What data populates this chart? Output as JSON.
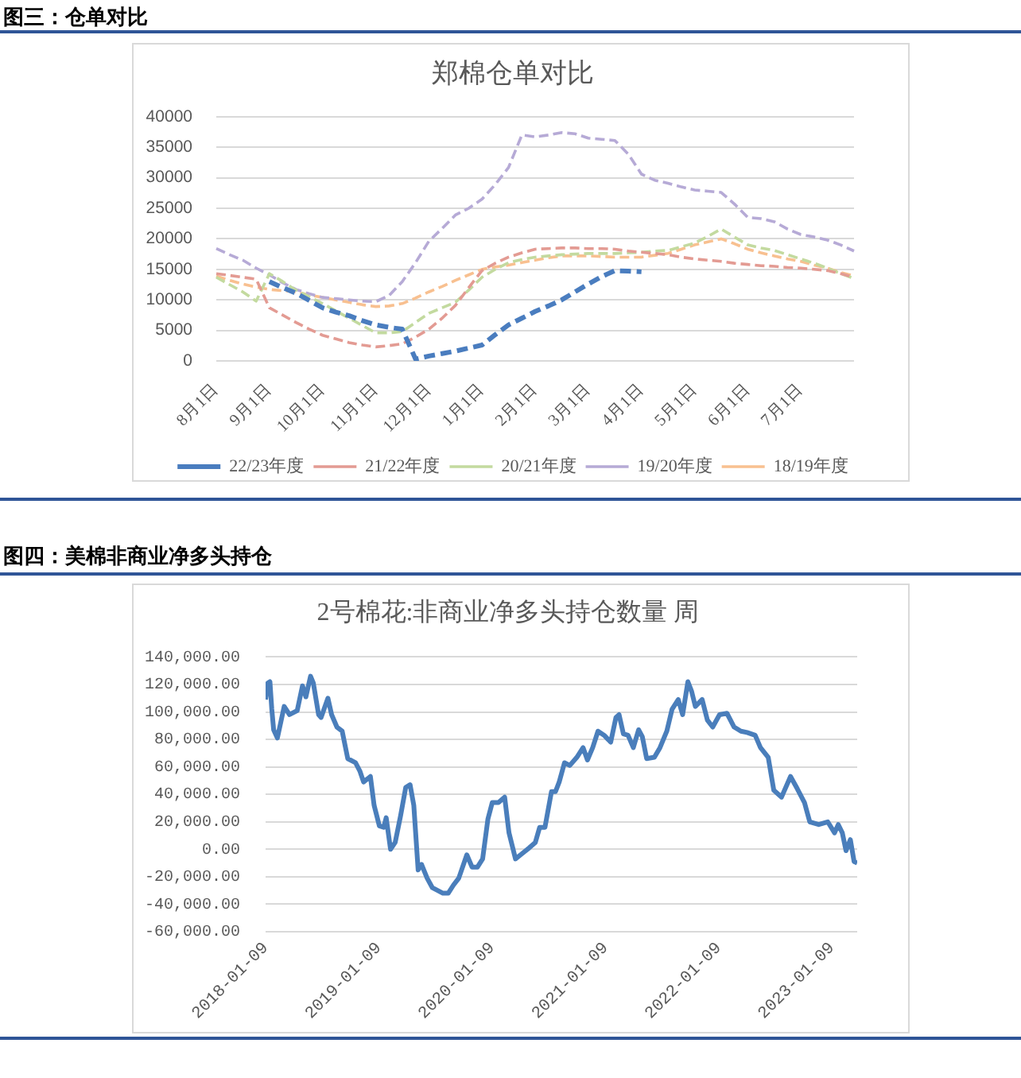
{
  "chart_data": [
    {
      "type": "line",
      "title": "图三：仓单对比",
      "subtitle": "郑棉仓单对比",
      "categories": [
        "8月1日",
        null,
        null,
        null,
        "9月1日",
        null,
        null,
        null,
        "10月1日",
        null,
        null,
        null,
        "11月1日",
        null,
        null,
        null,
        "12月1日",
        null,
        null,
        null,
        "1月1日",
        null,
        null,
        null,
        "2月1日",
        null,
        null,
        null,
        "3月1日",
        null,
        null,
        null,
        "4月1日",
        null,
        null,
        null,
        "5月1日",
        null,
        null,
        null,
        "6月1日",
        null,
        null,
        null,
        "7月1日",
        null,
        null,
        null,
        null
      ],
      "ylim": [
        0,
        40000
      ],
      "yticks": [
        0,
        5000,
        10000,
        15000,
        20000,
        25000,
        30000,
        35000,
        40000
      ],
      "grid": "y",
      "legend": "bottom",
      "line_style": "dashed",
      "marker": "none",
      "series": [
        {
          "name": "22/23年度",
          "color": "#4a7dbf",
          "values": [
            null,
            null,
            null,
            null,
            13000,
            12000,
            11100,
            9900,
            8700,
            8000,
            7400,
            6600,
            5900,
            5500,
            5200,
            300,
            800,
            1200,
            1600,
            2100,
            2600,
            4300,
            5900,
            7000,
            8100,
            9000,
            10000,
            11300,
            12600,
            13800,
            14800,
            14700,
            14600,
            null,
            null,
            null,
            null,
            null,
            null,
            null,
            null,
            null,
            null,
            null,
            null,
            null,
            null,
            null,
            null
          ]
        },
        {
          "name": "21/22年度",
          "color": "#e39b93",
          "values": [
            14300,
            14000,
            13700,
            13400,
            8700,
            7500,
            6300,
            5200,
            4200,
            3600,
            3000,
            2600,
            2300,
            2500,
            2800,
            3900,
            5200,
            7000,
            9100,
            12000,
            14800,
            16000,
            17000,
            17700,
            18300,
            18400,
            18500,
            18500,
            18400,
            18400,
            18300,
            18000,
            17800,
            17600,
            17400,
            17000,
            16700,
            16500,
            16300,
            16000,
            15800,
            15600,
            15500,
            15300,
            15200,
            15000,
            14800,
            14300,
            13700
          ]
        },
        {
          "name": "20/21年度",
          "color": "#c3da9f",
          "values": [
            13700,
            12500,
            11300,
            9800,
            14300,
            13000,
            11600,
            10500,
            9400,
            8200,
            7000,
            5800,
            4600,
            4600,
            4800,
            6300,
            7800,
            8700,
            9600,
            11600,
            13700,
            15000,
            16100,
            16600,
            17000,
            17200,
            17400,
            17500,
            17600,
            17600,
            17600,
            17700,
            17800,
            18000,
            18100,
            18700,
            19300,
            20400,
            21600,
            20300,
            19000,
            18500,
            18100,
            17400,
            16700,
            16000,
            15200,
            14300,
            13500
          ]
        },
        {
          "name": "19/20年度",
          "color": "#b6aad6",
          "values": [
            18400,
            17400,
            16500,
            15200,
            14100,
            12800,
            11700,
            11000,
            10400,
            10200,
            10000,
            9800,
            9700,
            10700,
            13000,
            16100,
            19600,
            21700,
            23900,
            25000,
            26500,
            28900,
            31700,
            37000,
            36700,
            37000,
            37400,
            37200,
            36500,
            36300,
            36100,
            33900,
            30600,
            29600,
            29100,
            28500,
            28000,
            27800,
            27600,
            25700,
            23500,
            23300,
            22800,
            21600,
            20700,
            20300,
            19800,
            19000,
            18000
          ]
        },
        {
          "name": "18/19年度",
          "color": "#f8c090",
          "values": [
            13900,
            13200,
            12600,
            12100,
            11700,
            11500,
            11300,
            10800,
            10400,
            10000,
            9600,
            9200,
            8900,
            9000,
            9400,
            10300,
            11300,
            12200,
            13200,
            14100,
            15000,
            15400,
            15700,
            16100,
            16500,
            16900,
            17200,
            17200,
            17200,
            17100,
            17000,
            17000,
            17000,
            17300,
            17600,
            18300,
            19000,
            19500,
            20000,
            19200,
            18300,
            17700,
            17200,
            16700,
            16300,
            15700,
            15200,
            14500,
            13900
          ]
        }
      ]
    },
    {
      "type": "line",
      "title": "图四：美棉非商业净多头持仓",
      "subtitle": "2号棉花:非商业净多头持仓数量 周",
      "xlim": [
        "2018-01-09",
        "2023-04-01"
      ],
      "xticks": [
        "2018-01-09",
        "2019-01-09",
        "2020-01-09",
        "2021-01-09",
        "2022-01-09",
        "2023-01-09"
      ],
      "ylim": [
        -60000,
        140000
      ],
      "yticks": [
        {
          "value": -60000,
          "label": "-60,000.00"
        },
        {
          "value": -40000,
          "label": "-40,000.00"
        },
        {
          "value": -20000,
          "label": "-20,000.00"
        },
        {
          "value": 0,
          "label": "0.00"
        },
        {
          "value": 20000,
          "label": "20,000.00"
        },
        {
          "value": 40000,
          "label": "40,000.00"
        },
        {
          "value": 60000,
          "label": "60,000.00"
        },
        {
          "value": 80000,
          "label": "80,000.00"
        },
        {
          "value": 100000,
          "label": "100,000.00"
        },
        {
          "value": 120000,
          "label": "120,000.00"
        },
        {
          "value": 140000,
          "label": "140,000.00"
        }
      ],
      "grid": "y",
      "marker": "none",
      "x": [
        "2018-01-09",
        "2018-01-16",
        "2018-01-23",
        "2018-01-29",
        "2018-02-04",
        "2018-02-16",
        "2018-03-10",
        "2018-03-27",
        "2018-04-21",
        "2018-05-08",
        "2018-05-19",
        "2018-06-03",
        "2018-06-12",
        "2018-06-29",
        "2018-07-07",
        "2018-07-29",
        "2018-08-10",
        "2018-08-27",
        "2018-09-13",
        "2018-10-01",
        "2018-10-26",
        "2018-11-09",
        "2018-11-21",
        "2018-12-13",
        "2018-12-25",
        "2019-01-11",
        "2019-01-25",
        "2019-02-02",
        "2019-02-16",
        "2019-03-03",
        "2019-03-20",
        "2019-04-06",
        "2019-04-20",
        "2019-05-02",
        "2019-05-16",
        "2019-05-27",
        "2019-06-14",
        "2019-07-01",
        "2019-07-18",
        "2019-08-04",
        "2019-08-21",
        "2019-09-07",
        "2019-09-24",
        "2019-10-20",
        "2019-11-06",
        "2019-11-23",
        "2019-12-10",
        "2019-12-27",
        "2020-01-10",
        "2020-01-30",
        "2020-02-19",
        "2020-03-04",
        "2020-03-25",
        "2020-04-16",
        "2020-05-08",
        "2020-05-28",
        "2020-06-11",
        "2020-06-28",
        "2020-07-19",
        "2020-08-01",
        "2020-08-13",
        "2020-08-30",
        "2020-09-16",
        "2020-10-09",
        "2020-10-29",
        "2020-11-12",
        "2020-11-29",
        "2020-12-16",
        "2021-01-05",
        "2021-01-26",
        "2021-02-12",
        "2021-02-22",
        "2021-03-08",
        "2021-03-23",
        "2021-04-09",
        "2021-04-26",
        "2021-05-08",
        "2021-05-22",
        "2021-06-16",
        "2021-07-04",
        "2021-07-26",
        "2021-08-12",
        "2021-09-01",
        "2021-09-15",
        "2021-10-02",
        "2021-10-14",
        "2021-10-26",
        "2021-11-17",
        "2021-12-04",
        "2021-12-21",
        "2022-01-12",
        "2022-02-05",
        "2022-02-28",
        "2022-03-22",
        "2022-04-11",
        "2022-05-07",
        "2022-05-24",
        "2022-06-18",
        "2022-07-06",
        "2022-07-31",
        "2022-08-29",
        "2022-09-20",
        "2022-10-13",
        "2022-10-30",
        "2022-11-28",
        "2022-12-27",
        "2023-01-18",
        "2023-01-30",
        "2023-02-12",
        "2023-02-24",
        "2023-03-10",
        "2023-03-22",
        "2023-04-01"
      ],
      "series": [
        {
          "color": "#4a7ebb",
          "values": [
            109000,
            121000,
            122000,
            102000,
            87000,
            81000,
            104000,
            98000,
            101000,
            119000,
            111000,
            126000,
            121000,
            98000,
            96000,
            110000,
            98000,
            89000,
            86000,
            66000,
            63000,
            57000,
            49000,
            53000,
            32000,
            17000,
            16000,
            23000,
            0,
            5000,
            24000,
            45000,
            47000,
            32000,
            -15000,
            -11000,
            -21000,
            -28000,
            -30000,
            -32000,
            -32000,
            -26000,
            -21000,
            -4000,
            -13000,
            -13000,
            -7000,
            22000,
            34000,
            34000,
            38000,
            12000,
            -7000,
            -3000,
            1000,
            5000,
            16000,
            16000,
            42000,
            42000,
            49000,
            63000,
            61000,
            67000,
            74000,
            65000,
            74000,
            86000,
            83000,
            78000,
            96000,
            98000,
            84000,
            83000,
            74000,
            87000,
            82000,
            66000,
            67000,
            74000,
            86000,
            102000,
            109000,
            98000,
            122000,
            115000,
            104000,
            109000,
            94000,
            89000,
            98000,
            99000,
            89000,
            86000,
            85000,
            83000,
            74000,
            67000,
            43000,
            38000,
            53000,
            44000,
            34000,
            20000,
            18000,
            20000,
            12000,
            18000,
            12000,
            -1000,
            7000,
            -9000,
            -10000
          ]
        }
      ]
    }
  ]
}
